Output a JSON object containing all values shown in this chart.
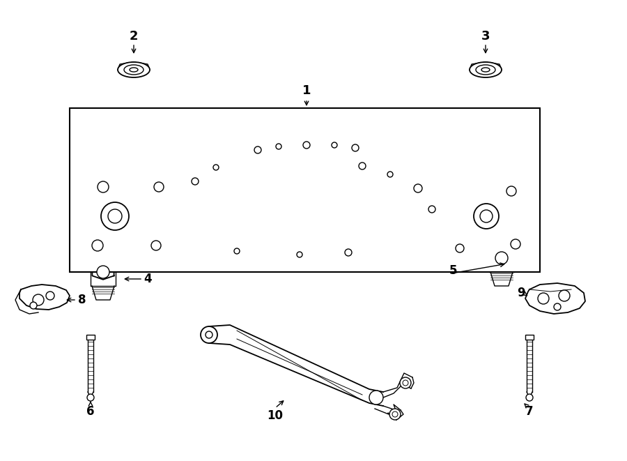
{
  "background_color": "#ffffff",
  "fig_width": 9.0,
  "fig_height": 6.61,
  "dpi": 100,
  "line_color": "#000000",
  "lw": 1.0,
  "lw_thick": 1.3
}
